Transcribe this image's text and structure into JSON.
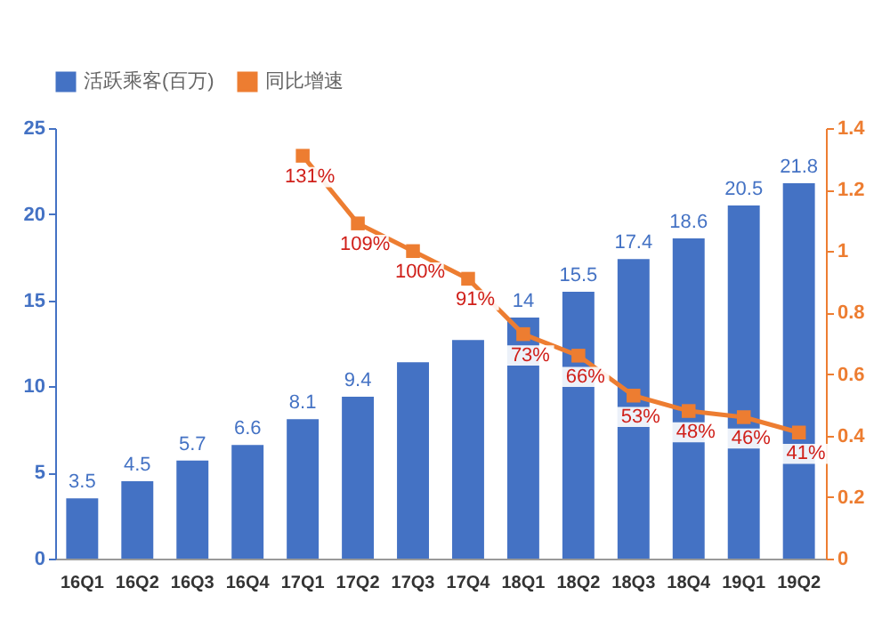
{
  "chart_data": {
    "type": "bar",
    "categories": [
      "16Q1",
      "16Q2",
      "16Q3",
      "16Q4",
      "17Q1",
      "17Q2",
      "17Q3",
      "17Q4",
      "18Q1",
      "18Q2",
      "18Q3",
      "18Q4",
      "19Q1",
      "19Q2"
    ],
    "series": [
      {
        "name": "活跃乘客(百万)",
        "color": "#4472c4",
        "values": [
          3.5,
          4.5,
          5.7,
          6.6,
          8.1,
          9.4,
          11.4,
          12.7,
          14,
          15.5,
          17.4,
          18.6,
          20.5,
          21.8
        ],
        "value_labels": [
          "3.5",
          "4.5",
          "5.7",
          "6.6",
          "8.1",
          "9.4",
          null,
          null,
          "14",
          "15.5",
          "17.4",
          "18.6",
          "20.5",
          "21.8"
        ]
      },
      {
        "name": "同比增速",
        "type": "line",
        "axis": "y2",
        "color": "#ed7d31",
        "values": [
          null,
          null,
          null,
          null,
          1.31,
          1.09,
          1.0,
          0.91,
          0.73,
          0.66,
          0.53,
          0.48,
          0.46,
          0.41
        ],
        "value_labels": [
          null,
          null,
          null,
          null,
          "131%",
          "109%",
          "100%",
          "91%",
          "73%",
          "66%",
          "53%",
          "48%",
          "46%",
          "41%"
        ]
      }
    ],
    "ylim": [
      0,
      25
    ],
    "yticks": [
      0,
      5,
      10,
      15,
      20,
      25
    ],
    "y2lim": [
      0,
      1.4
    ],
    "y2ticks": [
      0,
      0.2,
      0.4,
      0.6,
      0.8,
      1,
      1.2,
      1.4
    ],
    "grid": false,
    "legend": "top",
    "marker": "square",
    "line_style": "solid"
  }
}
